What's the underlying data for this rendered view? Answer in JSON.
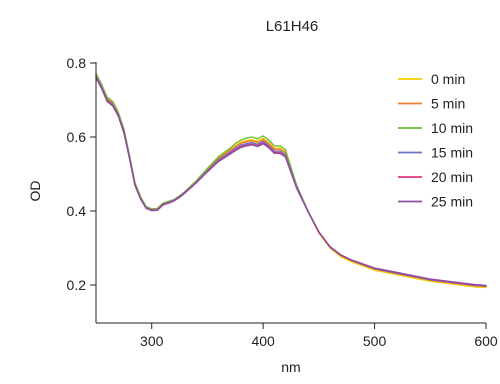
{
  "chart_data": {
    "type": "line",
    "title": "L61H46",
    "xlabel": "nm",
    "ylabel": "OD",
    "xlim": [
      250,
      600
    ],
    "ylim": [
      0.1,
      0.8
    ],
    "xticks": [
      300,
      400,
      500,
      600
    ],
    "yticks": [
      0.2,
      0.4,
      0.6,
      0.8
    ],
    "x": [
      250,
      255,
      260,
      265,
      270,
      275,
      280,
      285,
      290,
      295,
      300,
      305,
      310,
      315,
      320,
      325,
      330,
      340,
      350,
      360,
      370,
      375,
      380,
      385,
      390,
      395,
      400,
      405,
      410,
      415,
      420,
      430,
      440,
      450,
      460,
      470,
      480,
      500,
      550,
      590,
      595,
      600
    ],
    "series": [
      {
        "name": "0 min",
        "color": "#f4d000",
        "values": [
          0.77,
          0.74,
          0.705,
          0.693,
          0.665,
          0.62,
          0.55,
          0.475,
          0.437,
          0.411,
          0.405,
          0.406,
          0.42,
          0.425,
          0.43,
          0.44,
          0.452,
          0.48,
          0.512,
          0.543,
          0.564,
          0.576,
          0.586,
          0.59,
          0.593,
          0.588,
          0.596,
          0.585,
          0.57,
          0.57,
          0.56,
          0.467,
          0.4,
          0.34,
          0.3,
          0.276,
          0.262,
          0.24,
          0.21,
          0.195,
          0.194,
          0.193
        ]
      },
      {
        "name": "5 min",
        "color": "#ef7a2a",
        "values": [
          0.768,
          0.738,
          0.703,
          0.691,
          0.663,
          0.618,
          0.548,
          0.473,
          0.435,
          0.41,
          0.404,
          0.405,
          0.419,
          0.424,
          0.43,
          0.44,
          0.452,
          0.48,
          0.512,
          0.542,
          0.563,
          0.574,
          0.583,
          0.587,
          0.59,
          0.585,
          0.593,
          0.582,
          0.567,
          0.567,
          0.557,
          0.467,
          0.401,
          0.342,
          0.302,
          0.279,
          0.265,
          0.243,
          0.213,
          0.198,
          0.197,
          0.196
        ]
      },
      {
        "name": "10 min",
        "color": "#6cbf2c",
        "values": [
          0.772,
          0.742,
          0.708,
          0.696,
          0.667,
          0.622,
          0.552,
          0.476,
          0.438,
          0.412,
          0.406,
          0.407,
          0.421,
          0.426,
          0.431,
          0.441,
          0.453,
          0.482,
          0.515,
          0.547,
          0.569,
          0.582,
          0.592,
          0.597,
          0.6,
          0.595,
          0.603,
          0.592,
          0.576,
          0.576,
          0.566,
          0.47,
          0.402,
          0.343,
          0.303,
          0.28,
          0.266,
          0.244,
          0.214,
          0.2,
          0.199,
          0.198
        ]
      },
      {
        "name": "15 min",
        "color": "#6b72c8",
        "values": [
          0.764,
          0.735,
          0.7,
          0.688,
          0.66,
          0.615,
          0.546,
          0.471,
          0.434,
          0.409,
          0.403,
          0.404,
          0.418,
          0.423,
          0.429,
          0.439,
          0.451,
          0.478,
          0.509,
          0.538,
          0.558,
          0.569,
          0.578,
          0.582,
          0.585,
          0.58,
          0.588,
          0.577,
          0.562,
          0.562,
          0.552,
          0.465,
          0.401,
          0.343,
          0.303,
          0.28,
          0.266,
          0.244,
          0.214,
          0.199,
          0.198,
          0.197
        ]
      },
      {
        "name": "20 min",
        "color": "#e0367f",
        "values": [
          0.762,
          0.733,
          0.698,
          0.686,
          0.658,
          0.613,
          0.545,
          0.47,
          0.433,
          0.408,
          0.402,
          0.403,
          0.417,
          0.422,
          0.428,
          0.438,
          0.45,
          0.477,
          0.507,
          0.535,
          0.555,
          0.565,
          0.574,
          0.578,
          0.581,
          0.576,
          0.584,
          0.573,
          0.558,
          0.558,
          0.548,
          0.463,
          0.4,
          0.343,
          0.303,
          0.28,
          0.266,
          0.245,
          0.215,
          0.2,
          0.199,
          0.198
        ]
      },
      {
        "name": "25 min",
        "color": "#8a4fa0",
        "values": [
          0.76,
          0.731,
          0.696,
          0.684,
          0.656,
          0.611,
          0.543,
          0.469,
          0.432,
          0.407,
          0.401,
          0.402,
          0.416,
          0.421,
          0.427,
          0.437,
          0.449,
          0.476,
          0.506,
          0.534,
          0.553,
          0.563,
          0.572,
          0.576,
          0.579,
          0.574,
          0.582,
          0.571,
          0.556,
          0.556,
          0.546,
          0.462,
          0.4,
          0.343,
          0.304,
          0.281,
          0.267,
          0.246,
          0.216,
          0.201,
          0.2,
          0.199
        ]
      }
    ],
    "legend": "top-right",
    "grid": false
  }
}
